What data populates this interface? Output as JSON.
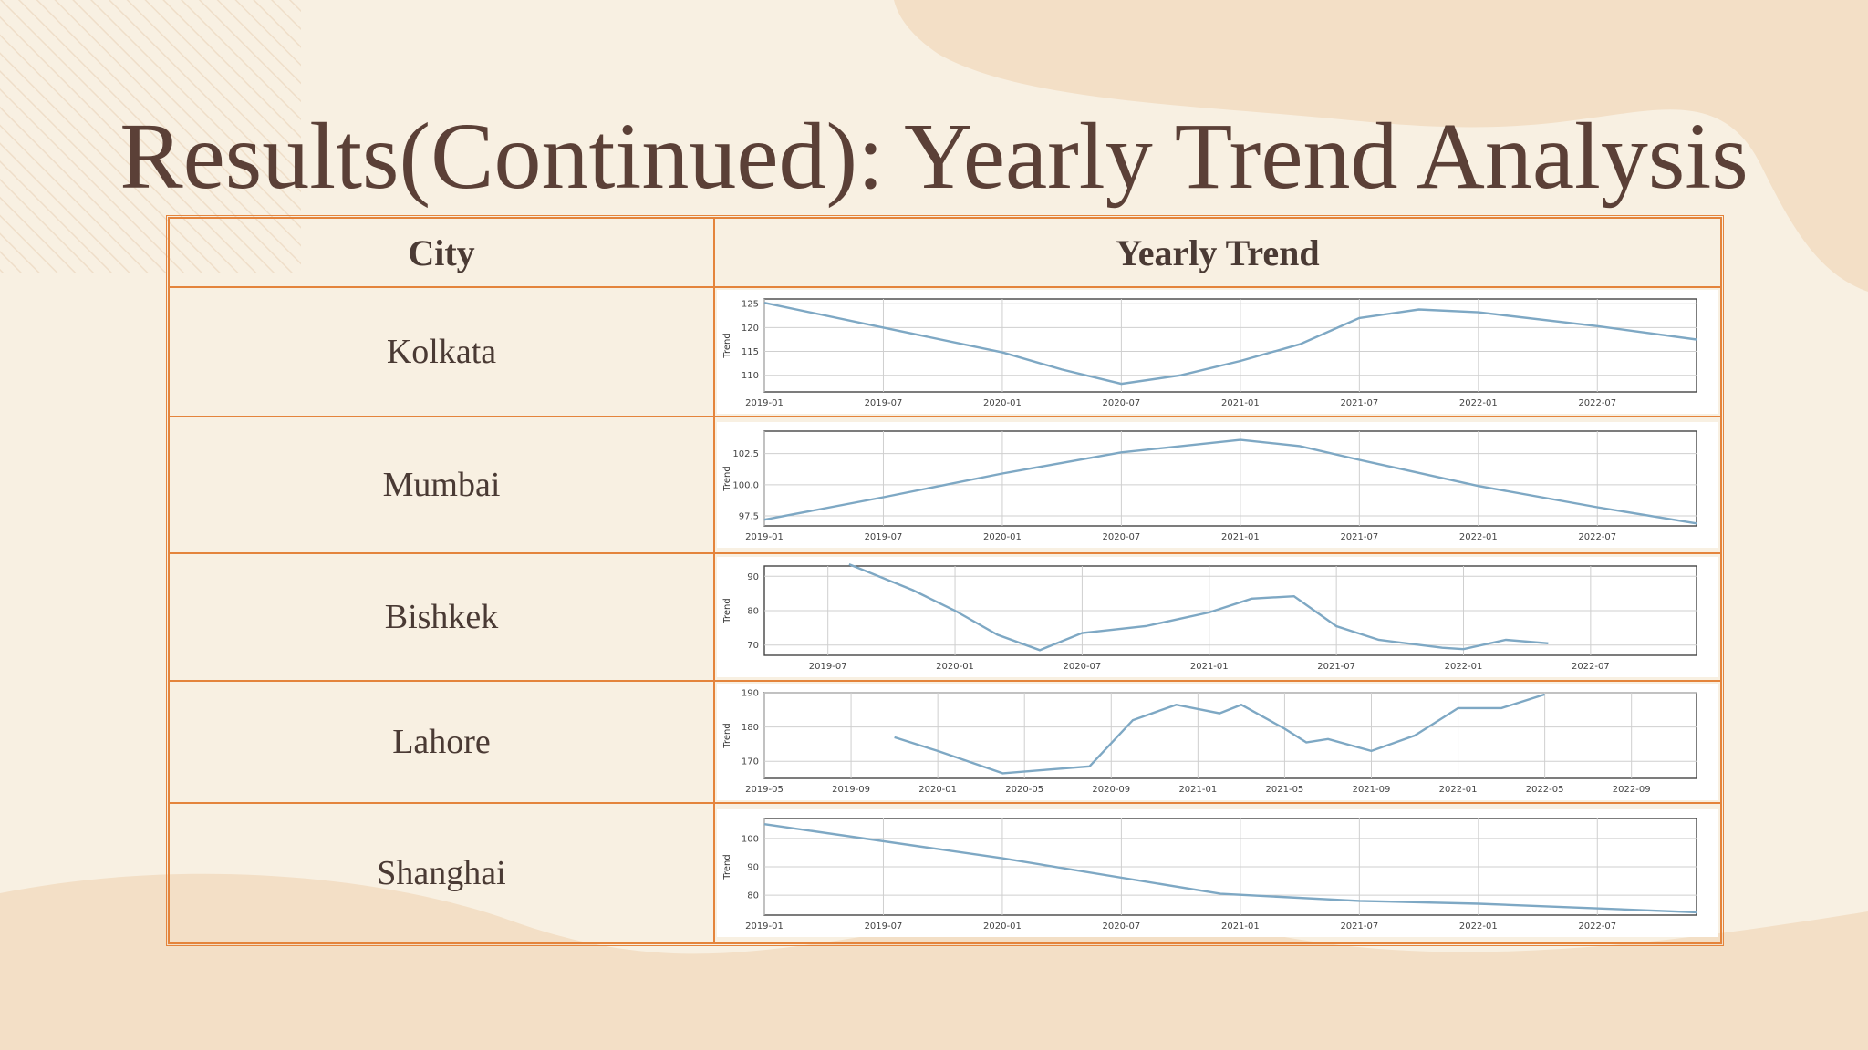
{
  "title": "Results(Continued): Yearly Trend Analysis",
  "table": {
    "headers": [
      "City",
      "Yearly Trend"
    ]
  },
  "colors": {
    "background": "#f8f0e2",
    "blob": "#f3dfc6",
    "border": "#e4843c",
    "title": "#5b4037",
    "line": "#7ea8c4"
  },
  "chart_data": [
    {
      "city": "Kolkata",
      "type": "line",
      "ylabel": "Trend",
      "xlim": [
        "2019-01",
        "2022-12"
      ],
      "ylim": [
        106.5,
        126
      ],
      "xticks": [
        "2019-01",
        "2019-07",
        "2020-01",
        "2020-07",
        "2021-01",
        "2021-07",
        "2022-01",
        "2022-07"
      ],
      "yticks": [
        110,
        115,
        120,
        125
      ],
      "x": [
        "2019-01",
        "2019-07",
        "2020-01",
        "2020-04",
        "2020-07",
        "2020-10",
        "2021-01",
        "2021-04",
        "2021-07",
        "2021-10",
        "2022-01",
        "2022-07",
        "2022-12"
      ],
      "y": [
        125.2,
        120.0,
        114.8,
        111.2,
        108.2,
        110.0,
        113.0,
        116.5,
        122.0,
        123.8,
        123.2,
        120.3,
        117.5
      ]
    },
    {
      "city": "Mumbai",
      "type": "line",
      "ylabel": "Trend",
      "xlim": [
        "2019-01",
        "2022-12"
      ],
      "ylim": [
        96.7,
        104.3
      ],
      "xticks": [
        "2019-01",
        "2019-07",
        "2020-01",
        "2020-07",
        "2021-01",
        "2021-07",
        "2022-01",
        "2022-07"
      ],
      "yticks": [
        97.5,
        100.0,
        102.5
      ],
      "tick_labels": [
        "97.5",
        "100.0",
        "102.5"
      ],
      "x": [
        "2019-01",
        "2019-07",
        "2020-01",
        "2020-07",
        "2021-01",
        "2021-04",
        "2021-07",
        "2022-01",
        "2022-07",
        "2022-12"
      ],
      "y": [
        97.2,
        99.0,
        100.9,
        102.6,
        103.6,
        103.1,
        102.0,
        99.9,
        98.2,
        96.9
      ]
    },
    {
      "city": "Bishkek",
      "type": "line",
      "ylabel": "Trend",
      "xlim": [
        "2019-04",
        "2022-12"
      ],
      "ylim": [
        67,
        93
      ],
      "xticks": [
        "2019-07",
        "2020-01",
        "2020-07",
        "2021-01",
        "2021-07",
        "2022-01",
        "2022-07"
      ],
      "yticks": [
        70,
        80,
        90
      ],
      "x": [
        "2019-08",
        "2019-11",
        "2020-01",
        "2020-03",
        "2020-05",
        "2020-07",
        "2020-10",
        "2021-01",
        "2021-03",
        "2021-05",
        "2021-07",
        "2021-09",
        "2021-12",
        "2022-01",
        "2022-03",
        "2022-05"
      ],
      "y": [
        93.5,
        86,
        80,
        73,
        68.5,
        73.5,
        75.5,
        79.5,
        83.5,
        84.2,
        75.5,
        71.5,
        69.2,
        68.8,
        71.5,
        70.5
      ]
    },
    {
      "city": "Lahore",
      "type": "line",
      "ylabel": "Trend",
      "xlim": [
        "2019-05",
        "2022-12"
      ],
      "ylim": [
        165,
        190
      ],
      "xticks": [
        "2019-05",
        "2019-09",
        "2020-01",
        "2020-05",
        "2020-09",
        "2021-01",
        "2021-05",
        "2021-09",
        "2022-01",
        "2022-05",
        "2022-09"
      ],
      "yticks": [
        170,
        180,
        190
      ],
      "x": [
        "2019-11",
        "2020-01",
        "2020-04",
        "2020-06",
        "2020-08",
        "2020-10",
        "2020-12",
        "2021-02",
        "2021-03",
        "2021-05",
        "2021-06",
        "2021-07",
        "2021-09",
        "2021-11",
        "2022-01",
        "2022-03",
        "2022-05"
      ],
      "y": [
        177,
        173,
        166.5,
        167.5,
        168.5,
        182,
        186.5,
        184,
        186.5,
        179.5,
        175.5,
        176.5,
        173,
        177.5,
        185.5,
        185.5,
        189.5
      ]
    },
    {
      "city": "Shanghai",
      "type": "line",
      "ylabel": "Trend",
      "xlim": [
        "2019-01",
        "2022-12"
      ],
      "ylim": [
        73,
        107
      ],
      "xticks": [
        "2019-01",
        "2019-07",
        "2020-01",
        "2020-07",
        "2021-01",
        "2021-07",
        "2022-01",
        "2022-07"
      ],
      "yticks": [
        80,
        90,
        100
      ],
      "x": [
        "2019-01",
        "2020-01",
        "2020-12",
        "2021-07",
        "2022-01",
        "2022-12"
      ],
      "y": [
        105,
        93,
        80.5,
        78,
        77,
        74
      ]
    }
  ]
}
